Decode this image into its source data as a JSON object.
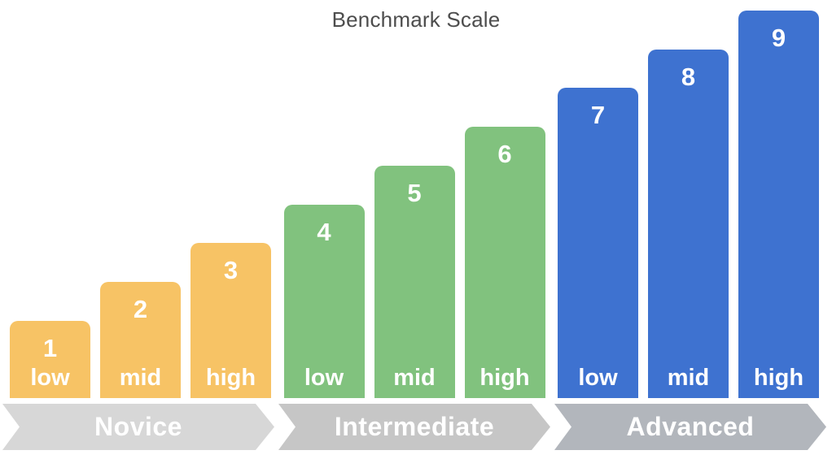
{
  "chart_data": {
    "type": "bar",
    "title": "Benchmark Scale",
    "xlabel": "",
    "ylabel": "",
    "ylim": [
      0,
      9
    ],
    "grid": false,
    "legend_position": "none",
    "value_label_color": "#FFFFFF",
    "title_color": "#4D4D4D",
    "background_color": "#FFFFFF",
    "categories": [
      "low",
      "mid",
      "high",
      "low",
      "mid",
      "high",
      "low",
      "mid",
      "high"
    ],
    "values": [
      1,
      2,
      3,
      4,
      5,
      6,
      7,
      8,
      9
    ],
    "groups": [
      {
        "name": "Novice",
        "bar_color": "#F7C365",
        "banner_color": "#D7D7D7",
        "bars": [
          {
            "value": 1,
            "label": "low"
          },
          {
            "value": 2,
            "label": "mid"
          },
          {
            "value": 3,
            "label": "high"
          }
        ]
      },
      {
        "name": "Intermediate",
        "bar_color": "#81C27E",
        "banner_color": "#C6C6C6",
        "bars": [
          {
            "value": 4,
            "label": "low"
          },
          {
            "value": 5,
            "label": "mid"
          },
          {
            "value": 6,
            "label": "high"
          }
        ]
      },
      {
        "name": "Advanced",
        "bar_color": "#3E72D0",
        "banner_color": "#B2B6BC",
        "bars": [
          {
            "value": 7,
            "label": "low"
          },
          {
            "value": 8,
            "label": "mid"
          },
          {
            "value": 9,
            "label": "high"
          }
        ]
      }
    ]
  }
}
